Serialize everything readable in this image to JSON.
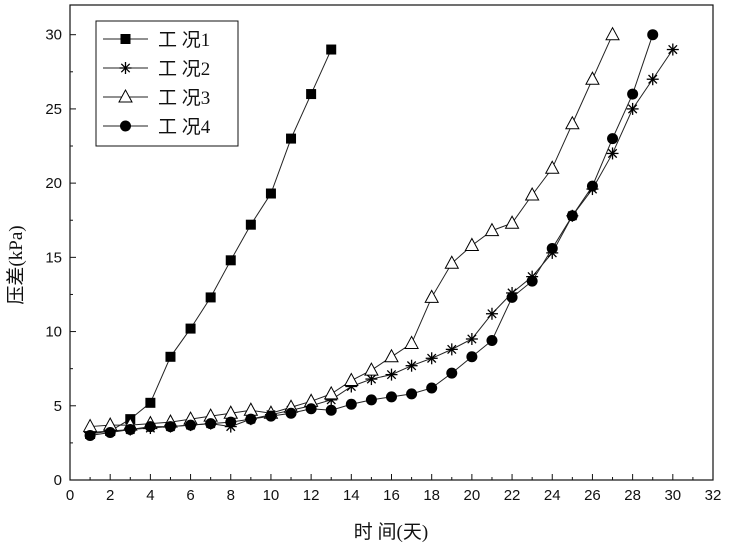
{
  "chart_data": {
    "type": "line",
    "xlabel": "时 间(天)",
    "ylabel": "压差(kPa)",
    "xlim": [
      0,
      32
    ],
    "ylim": [
      0,
      32
    ],
    "xticks": [
      "0",
      "2",
      "4",
      "6",
      "8",
      "10",
      "12",
      "14",
      "16",
      "18",
      "20",
      "22",
      "24",
      "26",
      "28",
      "30",
      "32"
    ],
    "yticks": [
      "0",
      "5",
      "10",
      "15",
      "20",
      "25",
      "30"
    ],
    "grid": false,
    "legend_position": "top-left",
    "series": [
      {
        "name": "工 况1",
        "marker": "square-filled",
        "x": [
          1,
          2,
          3,
          4,
          5,
          6,
          7,
          8,
          9,
          10,
          11,
          12,
          13
        ],
        "y": [
          3.1,
          3.3,
          4.1,
          5.2,
          8.3,
          10.2,
          12.3,
          14.8,
          17.2,
          19.3,
          23.0,
          26.0,
          29.0
        ]
      },
      {
        "name": "工 况2",
        "marker": "asterisk",
        "x": [
          1,
          2,
          3,
          4,
          5,
          6,
          7,
          8,
          9,
          10,
          11,
          12,
          13,
          14,
          15,
          16,
          17,
          18,
          19,
          20,
          21,
          22,
          23,
          24,
          25,
          26,
          27,
          28,
          29,
          30
        ],
        "y": [
          3.2,
          3.3,
          3.4,
          3.5,
          3.6,
          3.7,
          3.8,
          3.6,
          4.1,
          4.4,
          4.7,
          5.0,
          5.4,
          6.3,
          6.8,
          7.1,
          7.7,
          8.2,
          8.8,
          9.5,
          11.2,
          12.6,
          13.7,
          15.3,
          17.8,
          19.6,
          22.0,
          25.0,
          27.0,
          29.0
        ]
      },
      {
        "name": "工 况3",
        "marker": "triangle-open",
        "x": [
          1,
          2,
          3,
          4,
          5,
          6,
          7,
          8,
          9,
          10,
          11,
          12,
          13,
          14,
          15,
          16,
          17,
          18,
          19,
          20,
          21,
          22,
          23,
          24,
          25,
          26,
          27
        ],
        "y": [
          3.6,
          3.7,
          3.7,
          3.8,
          3.9,
          4.1,
          4.3,
          4.5,
          4.7,
          4.5,
          4.9,
          5.3,
          5.8,
          6.7,
          7.4,
          8.3,
          9.2,
          12.3,
          14.6,
          15.8,
          16.8,
          17.3,
          19.2,
          21.0,
          24.0,
          27.0,
          30.0
        ]
      },
      {
        "name": "工 况4",
        "marker": "circle-filled",
        "x": [
          1,
          2,
          3,
          4,
          5,
          6,
          7,
          8,
          9,
          10,
          11,
          12,
          13,
          14,
          15,
          16,
          17,
          18,
          19,
          20,
          21,
          22,
          23,
          24,
          25,
          26,
          27,
          28,
          29
        ],
        "y": [
          3.0,
          3.2,
          3.4,
          3.6,
          3.6,
          3.7,
          3.8,
          3.9,
          4.1,
          4.3,
          4.5,
          4.8,
          4.7,
          5.1,
          5.4,
          5.6,
          5.8,
          6.2,
          7.2,
          8.3,
          9.4,
          12.3,
          13.4,
          15.6,
          17.8,
          19.8,
          23.0,
          26.0,
          30.0
        ]
      }
    ]
  }
}
